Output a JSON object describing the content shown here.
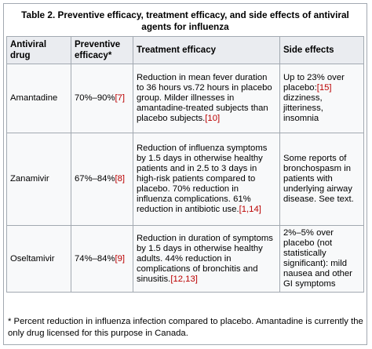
{
  "table": {
    "caption": "Table 2. Preventive efficacy, treatment efficacy, and side effects of antiviral agents for influenza",
    "headers": {
      "drug": "Antiviral drug",
      "preventive": "Preventive efficacy*",
      "treatment": "Treatment efficacy",
      "side_effects": "Side effects"
    },
    "rows": [
      {
        "drug": "Amantadine",
        "preventive": "70%–90%",
        "preventive_ref": "[7]",
        "treatment": "Reduction in mean fever duration to 36 hours vs.72 hours in placebo group. Milder illnesses in amantadine-treated subjects than placebo subjects.",
        "treatment_ref": "[10]",
        "side_pre": "Up to 23% over placebo:",
        "side_ref": "[15]",
        "side_post": " dizziness, jitteriness, insomnia"
      },
      {
        "drug": "Zanamivir",
        "preventive": "67%–84%",
        "preventive_ref": "[8]",
        "treatment": "Reduction of influenza symptoms by 1.5 days in otherwise healthy patients and in 2.5 to 3 days in high-risk patients compared to placebo. 70% reduction in influenza complications. 61% reduction in antibiotic use.",
        "treatment_ref": "[1,14]",
        "side_pre": "Some reports of bronchospasm in patients with underlying airway disease. See text.",
        "side_ref": "",
        "side_post": ""
      },
      {
        "drug": "Oseltamivir",
        "preventive": "74%–84%",
        "preventive_ref": "[9]",
        "treatment": "Reduction in duration of symptoms by 1.5 days in otherwise healthy adults. 44% reduction in complications of bronchitis and sinusitis.",
        "treatment_ref": "[12,13]",
        "side_pre": "2%–5% over placebo (not statistically significant): mild nausea and other GI symptoms",
        "side_ref": "",
        "side_post": ""
      }
    ],
    "footnote": "* Percent reduction in influenza infection compared to placebo. Amantadine is currently the only drug licensed for this purpose in Canada."
  },
  "colors": {
    "border": "#a2a9b1",
    "header_bg": "#eaecf0",
    "cell_bg": "#f8f9fa",
    "reference_link": "#ba0000"
  }
}
